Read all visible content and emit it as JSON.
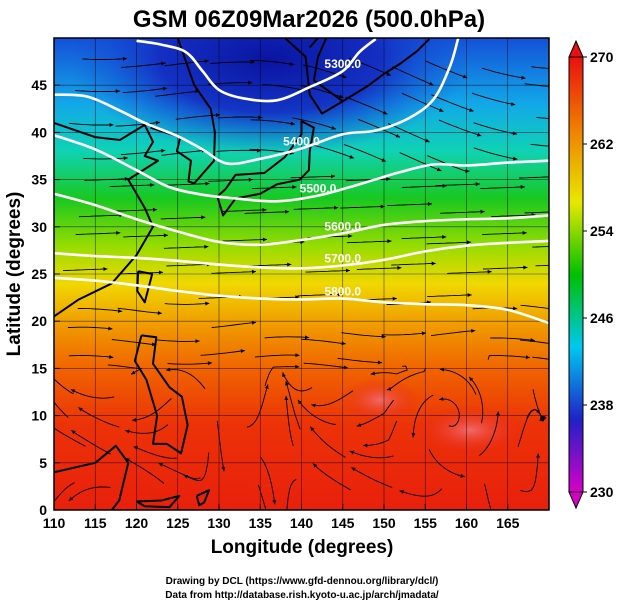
{
  "title": "GSM 06Z09Mar2026 (500.0hPa)",
  "chart_data": {
    "type": "map",
    "xlabel": "Longitude (degrees)",
    "ylabel": "Latitude  (degrees)",
    "xlim": [
      110,
      170
    ],
    "ylim": [
      0,
      50
    ],
    "x_ticks": [
      110,
      115,
      120,
      125,
      130,
      135,
      140,
      145,
      150,
      155,
      160,
      165
    ],
    "y_ticks": [
      0,
      5,
      10,
      15,
      20,
      25,
      30,
      35,
      40,
      45
    ],
    "grid": true,
    "shaded_field": "temperature",
    "contour_field": "geopotential height",
    "colorbar": {
      "min": 230,
      "max": 270,
      "ticks": [
        230,
        238,
        246,
        254,
        262,
        270
      ],
      "colors": [
        "#d800c8",
        "#2020c8",
        "#00c8f0",
        "#00c000",
        "#e8e800",
        "#f08000",
        "#e81010"
      ]
    },
    "contours": [
      {
        "label": "5300.0",
        "points": [
          [
            120,
            49.7
          ],
          [
            123,
            49.3
          ],
          [
            126,
            48.5
          ],
          [
            128,
            46.5
          ],
          [
            130,
            44.5
          ],
          [
            133,
            43.6
          ],
          [
            137,
            43.4
          ],
          [
            141,
            44.8
          ],
          [
            145,
            46.5
          ],
          [
            147,
            48.5
          ],
          [
            149,
            49.9
          ]
        ]
      },
      {
        "label": "5400.0",
        "points": [
          [
            110,
            44.0
          ],
          [
            114,
            43.8
          ],
          [
            118,
            42.3
          ],
          [
            121,
            41.0
          ],
          [
            125,
            39.6
          ],
          [
            128,
            38.2
          ],
          [
            131,
            36.7
          ],
          [
            135,
            37.2
          ],
          [
            140,
            38.3
          ],
          [
            145,
            39.8
          ],
          [
            149,
            40.2
          ],
          [
            153,
            41.5
          ],
          [
            156,
            43.5
          ],
          [
            158,
            47.0
          ],
          [
            159,
            50.0
          ]
        ]
      },
      {
        "label": "5500.0",
        "points": [
          [
            110,
            39.7
          ],
          [
            115,
            38.2
          ],
          [
            120,
            36.0
          ],
          [
            124,
            34.2
          ],
          [
            128,
            33.4
          ],
          [
            132,
            33.0
          ],
          [
            137,
            32.7
          ],
          [
            142,
            33.3
          ],
          [
            147,
            34.5
          ],
          [
            152,
            35.8
          ],
          [
            156,
            36.6
          ],
          [
            160,
            36.5
          ],
          [
            165,
            36.8
          ],
          [
            170,
            37.0
          ]
        ]
      },
      {
        "label": "5600.0",
        "points": [
          [
            110,
            33.5
          ],
          [
            115,
            32.3
          ],
          [
            120,
            30.8
          ],
          [
            125,
            29.5
          ],
          [
            130,
            28.4
          ],
          [
            135,
            28.1
          ],
          [
            140,
            28.6
          ],
          [
            145,
            29.3
          ],
          [
            150,
            30.2
          ],
          [
            155,
            30.6
          ],
          [
            160,
            30.8
          ],
          [
            165,
            30.9
          ],
          [
            170,
            31.2
          ]
        ]
      },
      {
        "label": "5700.0",
        "points": [
          [
            110,
            27.2
          ],
          [
            115,
            26.9
          ],
          [
            120,
            26.7
          ],
          [
            125,
            26.4
          ],
          [
            130,
            26.0
          ],
          [
            135,
            25.7
          ],
          [
            140,
            25.6
          ],
          [
            145,
            25.9
          ],
          [
            150,
            26.5
          ],
          [
            155,
            27.4
          ],
          [
            160,
            28.0
          ],
          [
            165,
            28.3
          ],
          [
            170,
            28.5
          ]
        ]
      },
      {
        "label": "5800.0",
        "points": [
          [
            110,
            24.6
          ],
          [
            115,
            24.3
          ],
          [
            120,
            23.8
          ],
          [
            125,
            23.2
          ],
          [
            130,
            22.7
          ],
          [
            135,
            22.4
          ],
          [
            140,
            22.3
          ],
          [
            145,
            22.4
          ],
          [
            150,
            22.0
          ],
          [
            155,
            21.8
          ],
          [
            160,
            21.7
          ],
          [
            165,
            21.2
          ],
          [
            170,
            19.8
          ]
        ]
      }
    ],
    "legend": "colorbar-right"
  },
  "credits": [
    "Drawing by DCL (https://www.gfd-dennou.org/library/dcl/)",
    "Data from http://database.rish.kyoto-u.ac.jp/arch/jmadata/"
  ]
}
